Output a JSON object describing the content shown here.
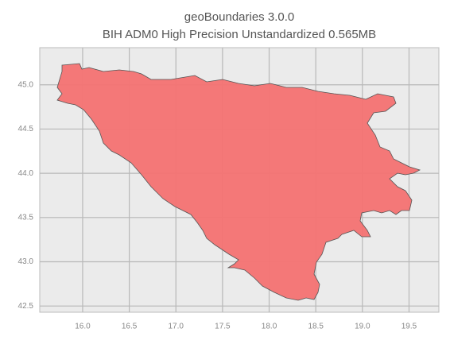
{
  "chart_data": {
    "type": "map",
    "title": "geoBoundaries 3.0.0",
    "subtitle": "BIH ADM0 High Precision Unstandardized 0.565MB",
    "xlim": [
      15.54,
      19.82
    ],
    "ylim": [
      42.43,
      45.42
    ],
    "xticks": [
      {
        "value": 16,
        "label": "16.0"
      },
      16.5,
      {
        "value": 17,
        "label": "17.0"
      },
      17.5,
      {
        "value": 18,
        "label": "18.0"
      },
      18.5,
      {
        "value": 19,
        "label": "19.0"
      },
      19.5
    ],
    "yticks": [
      42.5,
      {
        "value": 43,
        "label": "43.0"
      },
      43.5,
      {
        "value": 44,
        "label": "44.0"
      },
      44.5,
      {
        "value": 45,
        "label": "45.0"
      }
    ],
    "grid": true,
    "color": "#f47272"
  }
}
